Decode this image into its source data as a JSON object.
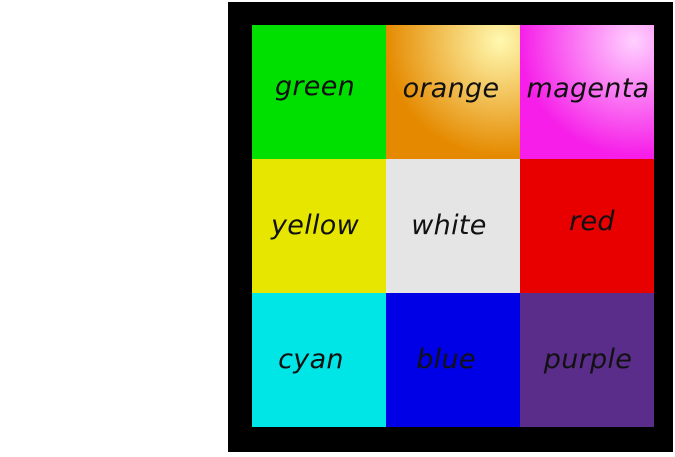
{
  "grid": {
    "cells": [
      {
        "label": "green",
        "color": "#00e000",
        "name": "cell-green"
      },
      {
        "label": "orange",
        "color": "#e58a00",
        "highlight": "#fff9b0",
        "name": "cell-orange"
      },
      {
        "label": "magenta",
        "color": "#f61ee8",
        "highlight": "#ffd0ff",
        "name": "cell-magenta"
      },
      {
        "label": "yellow",
        "color": "#e6e600",
        "name": "cell-yellow"
      },
      {
        "label": "white",
        "color": "#e5e5e5",
        "name": "cell-white"
      },
      {
        "label": "red",
        "color": "#e80000",
        "name": "cell-red"
      },
      {
        "label": "cyan",
        "color": "#00e6e6",
        "name": "cell-cyan"
      },
      {
        "label": "blue",
        "color": "#0000e6",
        "name": "cell-blue"
      },
      {
        "label": "purple",
        "color": "#5a2d8a",
        "name": "cell-purple"
      }
    ]
  }
}
